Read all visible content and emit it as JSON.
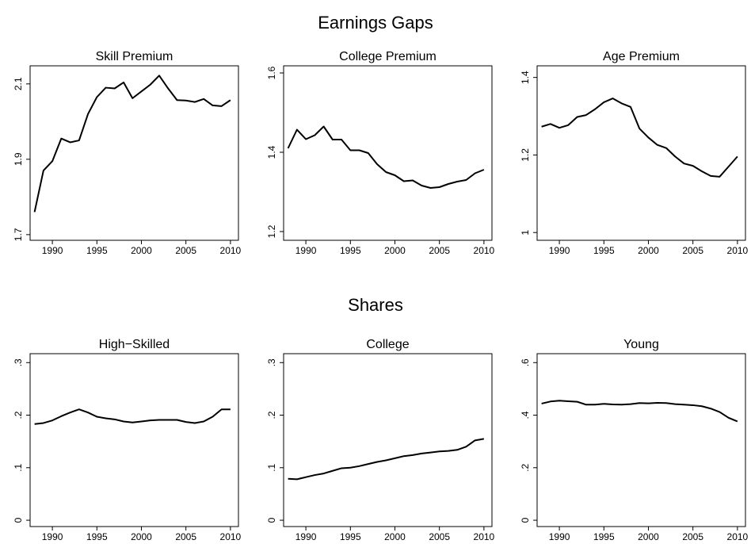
{
  "headings": [
    "Earnings Gaps",
    "Shares"
  ],
  "chart_data": [
    {
      "type": "line",
      "title": "Skill Premium",
      "color": "#000000",
      "x": [
        1988,
        1989,
        1990,
        1991,
        1992,
        1993,
        1994,
        1995,
        1996,
        1997,
        1998,
        1999,
        2000,
        2001,
        2002,
        2003,
        2004,
        2005,
        2006,
        2007,
        2008,
        2009,
        2010
      ],
      "values": [
        1.76,
        1.87,
        1.895,
        1.955,
        1.945,
        1.95,
        2.02,
        2.065,
        2.09,
        2.088,
        2.104,
        2.062,
        2.08,
        2.098,
        2.122,
        2.088,
        2.057,
        2.056,
        2.052,
        2.06,
        2.043,
        2.041,
        2.057
      ],
      "xlim": [
        1987.5,
        2010.9
      ],
      "xticks": [
        1990,
        1995,
        2000,
        2005,
        2010
      ],
      "ylim": [
        1.685,
        2.148
      ],
      "yticks": [
        1.7,
        1.9,
        2.1
      ]
    },
    {
      "type": "line",
      "title": "College Premium",
      "color": "#000000",
      "x": [
        1988,
        1989,
        1990,
        1991,
        1992,
        1993,
        1994,
        1995,
        1996,
        1997,
        1998,
        1999,
        2000,
        2001,
        2002,
        2003,
        2004,
        2005,
        2006,
        2007,
        2008,
        2009,
        2010
      ],
      "values": [
        1.41,
        1.457,
        1.433,
        1.443,
        1.465,
        1.432,
        1.432,
        1.405,
        1.405,
        1.398,
        1.37,
        1.35,
        1.342,
        1.327,
        1.329,
        1.316,
        1.31,
        1.312,
        1.32,
        1.326,
        1.33,
        1.347,
        1.356
      ],
      "xlim": [
        1987.5,
        2010.9
      ],
      "xticks": [
        1990,
        1995,
        2000,
        2005,
        2010
      ],
      "ylim": [
        1.178,
        1.618
      ],
      "yticks": [
        1.2,
        1.4,
        1.6
      ]
    },
    {
      "type": "line",
      "title": "Age Premium",
      "color": "#000000",
      "x": [
        1988,
        1989,
        1990,
        1991,
        1992,
        1993,
        1994,
        1995,
        1996,
        1997,
        1998,
        1999,
        2000,
        2001,
        2002,
        2003,
        2004,
        2005,
        2006,
        2007,
        2008,
        2009,
        2010
      ],
      "values": [
        1.273,
        1.28,
        1.27,
        1.277,
        1.298,
        1.303,
        1.318,
        1.336,
        1.346,
        1.333,
        1.324,
        1.268,
        1.245,
        1.226,
        1.218,
        1.196,
        1.178,
        1.172,
        1.158,
        1.146,
        1.144,
        1.17,
        1.196
      ],
      "xlim": [
        1987.5,
        2010.9
      ],
      "xticks": [
        1990,
        1995,
        2000,
        2005,
        2010
      ],
      "ylim": [
        0.98,
        1.43
      ],
      "yticks": [
        1,
        1.2,
        1.4
      ]
    },
    {
      "type": "line",
      "title": "High−Skilled",
      "color": "#000000",
      "x": [
        1988,
        1989,
        1990,
        1991,
        1992,
        1993,
        1994,
        1995,
        1996,
        1997,
        1998,
        1999,
        2000,
        2001,
        2002,
        2003,
        2004,
        2005,
        2006,
        2007,
        2008,
        2009,
        2010
      ],
      "values": [
        0.183,
        0.185,
        0.19,
        0.198,
        0.205,
        0.211,
        0.205,
        0.197,
        0.194,
        0.192,
        0.188,
        0.186,
        0.188,
        0.19,
        0.191,
        0.191,
        0.191,
        0.187,
        0.185,
        0.188,
        0.197,
        0.211,
        0.211
      ],
      "xlim": [
        1987.5,
        2010.9
      ],
      "xticks": [
        1990,
        1995,
        2000,
        2005,
        2010
      ],
      "ylim": [
        -0.012,
        0.317
      ],
      "yticks": [
        0,
        {
          "value": 0.1,
          "label": ".1"
        },
        {
          "value": 0.2,
          "label": ".2"
        },
        {
          "value": 0.3,
          "label": ".3"
        }
      ]
    },
    {
      "type": "line",
      "title": "College",
      "color": "#000000",
      "x": [
        1988,
        1989,
        1990,
        1991,
        1992,
        1993,
        1994,
        1995,
        1996,
        1997,
        1998,
        1999,
        2000,
        2001,
        2002,
        2003,
        2004,
        2005,
        2006,
        2007,
        2008,
        2009,
        2010
      ],
      "values": [
        0.079,
        0.078,
        0.082,
        0.086,
        0.089,
        0.094,
        0.099,
        0.1,
        0.103,
        0.107,
        0.111,
        0.114,
        0.118,
        0.122,
        0.124,
        0.127,
        0.129,
        0.131,
        0.132,
        0.134,
        0.14,
        0.152,
        0.155
      ],
      "xlim": [
        1987.5,
        2010.9
      ],
      "xticks": [
        1990,
        1995,
        2000,
        2005,
        2010
      ],
      "ylim": [
        -0.012,
        0.317
      ],
      "yticks": [
        0,
        {
          "value": 0.1,
          "label": ".1"
        },
        {
          "value": 0.2,
          "label": ".2"
        },
        {
          "value": 0.3,
          "label": ".3"
        }
      ]
    },
    {
      "type": "line",
      "title": "Young",
      "color": "#000000",
      "x": [
        1988,
        1989,
        1990,
        1991,
        1992,
        1993,
        1994,
        1995,
        1996,
        1997,
        1998,
        1999,
        2000,
        2001,
        2002,
        2003,
        2004,
        2005,
        2006,
        2007,
        2008,
        2009,
        2010
      ],
      "values": [
        0.444,
        0.452,
        0.455,
        0.453,
        0.451,
        0.44,
        0.44,
        0.443,
        0.441,
        0.44,
        0.442,
        0.446,
        0.445,
        0.447,
        0.446,
        0.442,
        0.44,
        0.438,
        0.434,
        0.425,
        0.412,
        0.39,
        0.376
      ],
      "xlim": [
        1987.5,
        2010.9
      ],
      "xticks": [
        1990,
        1995,
        2000,
        2005,
        2010
      ],
      "ylim": [
        -0.024,
        0.634
      ],
      "yticks": [
        0,
        {
          "value": 0.2,
          "label": ".2"
        },
        {
          "value": 0.4,
          "label": ".4"
        },
        {
          "value": 0.6,
          "label": ".6"
        }
      ]
    }
  ]
}
